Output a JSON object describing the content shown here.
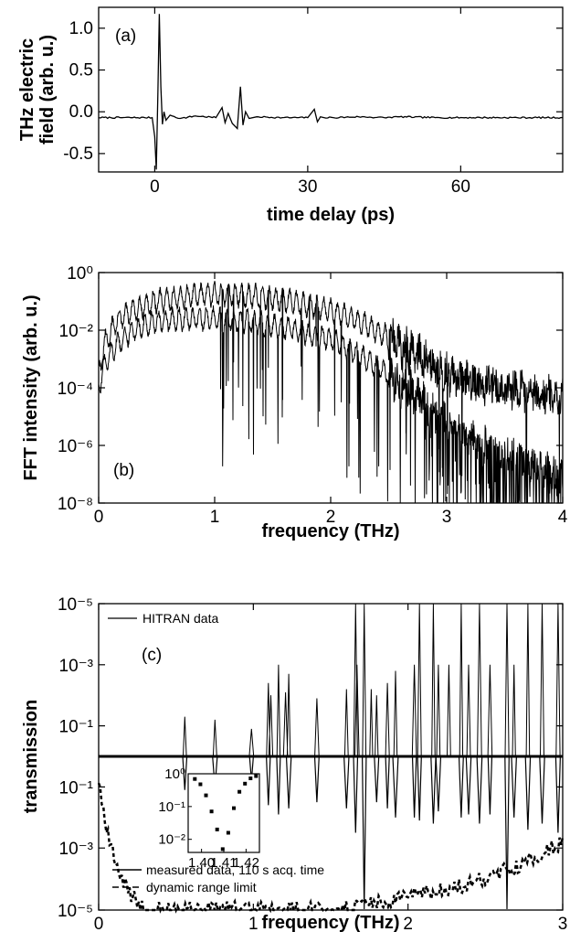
{
  "chart_data": [
    {
      "id": "a",
      "type": "line",
      "panel_label": "(a)",
      "xlabel": "time delay (ps)",
      "ylabel": [
        "THz electric",
        "field (arb. u.)"
      ],
      "xlim": [
        -11,
        80
      ],
      "ylim": [
        -0.72,
        1.25
      ],
      "xticks": [
        0,
        30,
        60
      ],
      "xtick_labels": [
        "0",
        "30",
        "60"
      ],
      "yticks": [
        1.0,
        0.5,
        0.0,
        -0.5
      ],
      "ytick_labels": [
        "1.0",
        "0.5",
        "0.0",
        "-0.5"
      ],
      "series": [
        {
          "x": [
            -11,
            -0.5,
            0.0,
            0.3,
            0.6,
            0.9,
            1.2,
            1.5,
            1.8,
            2.2,
            3.0,
            5,
            8,
            12,
            13.2,
            13.8,
            14.4,
            15.2,
            16.2,
            16.8,
            17.3,
            17.8,
            18.5,
            20,
            25,
            30,
            31.3,
            31.9,
            32.5,
            33.2,
            35,
            40,
            45,
            48,
            55,
            65,
            80
          ],
          "y": [
            -0.07,
            -0.07,
            -0.3,
            -0.69,
            0.2,
            1.17,
            0.3,
            -0.15,
            0.0,
            -0.1,
            -0.04,
            -0.08,
            -0.05,
            -0.07,
            0.05,
            -0.13,
            -0.02,
            -0.14,
            -0.2,
            0.3,
            -0.16,
            0.0,
            -0.08,
            -0.06,
            -0.07,
            -0.07,
            0.03,
            -0.12,
            -0.06,
            -0.07,
            -0.07,
            -0.06,
            -0.07,
            -0.06,
            -0.07,
            -0.07,
            -0.07
          ]
        }
      ]
    },
    {
      "id": "b",
      "type": "line",
      "panel_label": "(b)",
      "xlabel": "frequency (THz)",
      "ylabel": "FFT intensity (arb. u.)",
      "xlim": [
        0,
        4
      ],
      "ylim_log10": [
        -8,
        0
      ],
      "xticks": [
        0,
        1,
        2,
        3,
        4
      ],
      "xtick_labels": [
        "0",
        "1",
        "2",
        "3",
        "4"
      ],
      "yticks_log10": [
        0,
        -2,
        -4,
        -6,
        -8
      ],
      "ytick_labels": [
        "10⁰",
        "10⁻²",
        "10⁻⁴",
        "10⁻⁶",
        "10⁻⁸"
      ],
      "series": [
        {
          "x": [
            0,
            0.05,
            0.15,
            0.3,
            0.5,
            0.8,
            1.0,
            1.3,
            1.6,
            2.0,
            2.3,
            2.6,
            2.8,
            3.0,
            3.2,
            3.5,
            3.8,
            4.0
          ],
          "y_log10": [
            -3.5,
            -2.5,
            -1.7,
            -1.3,
            -1.0,
            -0.8,
            -0.75,
            -0.8,
            -0.95,
            -1.3,
            -1.8,
            -2.5,
            -3.0,
            -3.5,
            -3.8,
            -4.0,
            -4.2,
            -4.3
          ]
        },
        {
          "x": [
            0,
            0.05,
            0.15,
            0.3,
            0.5,
            0.8,
            1.0,
            1.3,
            1.6,
            2.0,
            2.3,
            2.6,
            2.8,
            3.0,
            3.2,
            3.5,
            3.8,
            4.0
          ],
          "y_log10": [
            -4.0,
            -3.2,
            -2.5,
            -2.0,
            -1.7,
            -1.6,
            -1.6,
            -1.7,
            -1.9,
            -2.3,
            -3.0,
            -3.8,
            -4.4,
            -5.2,
            -5.8,
            -6.3,
            -6.8,
            -7.2
          ]
        }
      ]
    },
    {
      "id": "c",
      "type": "line",
      "panel_label": "(c)",
      "xlabel": "frequency (THz)",
      "ylabel": "transmission",
      "xlim": [
        0,
        3
      ],
      "xticks": [
        0,
        1,
        2,
        3
      ],
      "xtick_labels": [
        "0",
        "1",
        "2",
        "3"
      ],
      "ytick_labels": [
        "10⁻⁵",
        "10⁻³",
        "10⁻¹",
        "10⁻¹",
        "10⁻³",
        "10⁻⁵"
      ],
      "legend_top": "HITRAN data",
      "legend_bottom": [
        "measured data, 110 s acq. time",
        "dynamic range limit"
      ],
      "lines_upper": [
        {
          "f": 0.557,
          "depth_decades": 1.3
        },
        {
          "f": 0.752,
          "depth_decades": 1.2
        },
        {
          "f": 0.988,
          "depth_decades": 0.9
        },
        {
          "f": 1.097,
          "depth_decades": 2.4
        },
        {
          "f": 1.113,
          "depth_decades": 2.0
        },
        {
          "f": 1.163,
          "depth_decades": 3.0
        },
        {
          "f": 1.208,
          "depth_decades": 2.1
        },
        {
          "f": 1.229,
          "depth_decades": 2.7
        },
        {
          "f": 1.411,
          "depth_decades": 1.9
        },
        {
          "f": 1.602,
          "depth_decades": 2.2
        },
        {
          "f": 1.661,
          "depth_decades": 5.0
        },
        {
          "f": 1.67,
          "depth_decades": 3.0
        },
        {
          "f": 1.717,
          "depth_decades": 5.0
        },
        {
          "f": 1.762,
          "depth_decades": 2.2
        },
        {
          "f": 1.797,
          "depth_decades": 2.0
        },
        {
          "f": 1.867,
          "depth_decades": 2.4
        },
        {
          "f": 1.919,
          "depth_decades": 2.8
        },
        {
          "f": 2.041,
          "depth_decades": 3.0
        },
        {
          "f": 2.074,
          "depth_decades": 5.0
        },
        {
          "f": 2.164,
          "depth_decades": 5.0
        },
        {
          "f": 2.196,
          "depth_decades": 3.0
        },
        {
          "f": 2.264,
          "depth_decades": 3.0
        },
        {
          "f": 2.344,
          "depth_decades": 5.0
        },
        {
          "f": 2.392,
          "depth_decades": 3.0
        },
        {
          "f": 2.462,
          "depth_decades": 5.0
        },
        {
          "f": 2.53,
          "depth_decades": 3.0
        },
        {
          "f": 2.64,
          "depth_decades": 5.0
        },
        {
          "f": 2.685,
          "depth_decades": 3.0
        },
        {
          "f": 2.775,
          "depth_decades": 5.0
        },
        {
          "f": 2.867,
          "depth_decades": 5.0
        },
        {
          "f": 2.97,
          "depth_decades": 5.0
        }
      ],
      "lines_lower": [
        {
          "f": 0.557,
          "depth_decades": 1.1
        },
        {
          "f": 0.752,
          "depth_decades": 1.0
        },
        {
          "f": 0.988,
          "depth_decades": 0.8
        },
        {
          "f": 1.097,
          "depth_decades": 1.6
        },
        {
          "f": 1.163,
          "depth_decades": 1.9
        },
        {
          "f": 1.229,
          "depth_decades": 1.7
        },
        {
          "f": 1.411,
          "depth_decades": 1.5
        },
        {
          "f": 1.602,
          "depth_decades": 1.7
        },
        {
          "f": 1.661,
          "depth_decades": 2.5
        },
        {
          "f": 1.717,
          "depth_decades": 5.0
        },
        {
          "f": 1.797,
          "depth_decades": 1.5
        },
        {
          "f": 1.867,
          "depth_decades": 1.7
        },
        {
          "f": 1.919,
          "depth_decades": 2.0
        },
        {
          "f": 2.041,
          "depth_decades": 2.0
        },
        {
          "f": 2.074,
          "depth_decades": 2.1
        },
        {
          "f": 2.164,
          "depth_decades": 2.2
        },
        {
          "f": 2.196,
          "depth_decades": 1.8
        },
        {
          "f": 2.344,
          "depth_decades": 2.0
        },
        {
          "f": 2.392,
          "depth_decades": 1.9
        },
        {
          "f": 2.462,
          "depth_decades": 2.2
        },
        {
          "f": 2.53,
          "depth_decades": 1.9
        },
        {
          "f": 2.64,
          "depth_decades": 5.0
        },
        {
          "f": 2.685,
          "depth_decades": 2.0
        },
        {
          "f": 2.775,
          "depth_decades": 2.4
        },
        {
          "f": 2.867,
          "depth_decades": 2.2
        },
        {
          "f": 2.97,
          "depth_decades": 2.5
        }
      ],
      "dynamic_range_limit": {
        "x": [
          0.0,
          0.03,
          0.06,
          0.1,
          0.15,
          0.2,
          0.3,
          0.5,
          1.0,
          1.5,
          1.7,
          1.9,
          2.1,
          2.3,
          2.5,
          2.7,
          2.9,
          3.0
        ],
        "y_log10": [
          -0.8,
          -1.8,
          -2.6,
          -3.3,
          -4.0,
          -4.5,
          -5.0,
          -5.0,
          -5.0,
          -5.0,
          -4.9,
          -4.7,
          -4.5,
          -4.3,
          -4.0,
          -3.6,
          -3.1,
          -2.8
        ]
      },
      "inset": {
        "type": "scatter",
        "xlim": [
          1.394,
          1.426
        ],
        "ylim_log10": [
          -2.4,
          0
        ],
        "xticks": [
          1.4,
          1.41,
          1.42
        ],
        "xtick_labels": [
          "1.40",
          "1.41",
          "1.42"
        ],
        "yticks_log10": [
          0,
          -1,
          -2
        ],
        "ytick_labels": [
          "10⁰",
          "10⁻¹",
          "10⁻²"
        ],
        "x": [
          1.397,
          1.3995,
          1.402,
          1.4045,
          1.407,
          1.4095,
          1.412,
          1.4145,
          1.417,
          1.4195,
          1.422,
          1.4245
        ],
        "y_log10": [
          -0.16,
          -0.32,
          -0.66,
          -1.15,
          -1.7,
          -2.3,
          -1.8,
          -1.05,
          -0.55,
          -0.3,
          -0.14,
          -0.07
        ]
      }
    }
  ]
}
